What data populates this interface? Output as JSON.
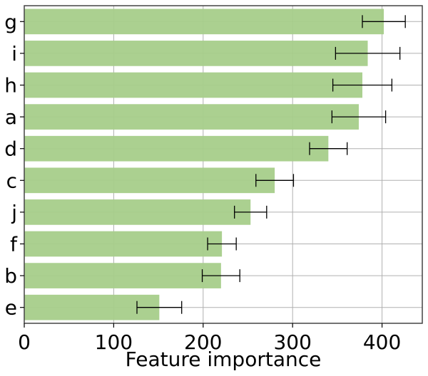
{
  "chart_data": {
    "type": "bar",
    "orientation": "horizontal",
    "categories": [
      "g",
      "i",
      "h",
      "a",
      "d",
      "c",
      "j",
      "f",
      "b",
      "e"
    ],
    "values": [
      402,
      384,
      378,
      374,
      340,
      280,
      253,
      221,
      220,
      151
    ],
    "error": [
      24,
      36,
      33,
      30,
      21,
      21,
      18,
      16,
      21,
      25
    ],
    "xlabel": "Feature importance",
    "ylabel": "",
    "title": "",
    "xlim": [
      0,
      445
    ],
    "xticks": [
      0,
      100,
      200,
      300,
      400
    ],
    "xtick_labels": [
      "0",
      "100",
      "200",
      "300",
      "400"
    ],
    "grid": true,
    "bar_color": "#a6cd8a",
    "errorbar_color": "#000000",
    "grid_color": "#b0b0b0"
  }
}
